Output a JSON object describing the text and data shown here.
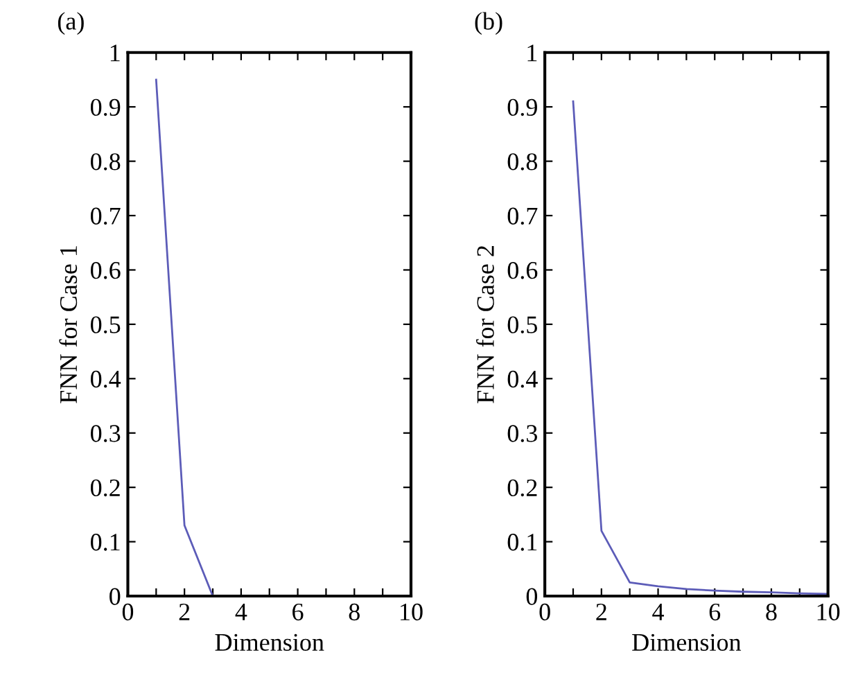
{
  "chart_data": [
    {
      "type": "line",
      "title": "(a)",
      "xlabel": "Dimension",
      "ylabel": "FNN for Case 1",
      "x": [
        1,
        2,
        3
      ],
      "series": [
        {
          "color": "#5c5cb8",
          "values": [
            0.95,
            0.13,
            0.0
          ]
        }
      ],
      "xlim": [
        0,
        10
      ],
      "ylim": [
        0,
        1
      ],
      "xticks": [
        0,
        {
          "value": 1,
          "label": null
        },
        2,
        {
          "value": 3,
          "label": null
        },
        4,
        {
          "value": 5,
          "label": null
        },
        6,
        {
          "value": 7,
          "label": null
        },
        8,
        {
          "value": 9,
          "label": null
        },
        10
      ],
      "yticks": [
        0,
        0.1,
        0.2,
        0.3,
        0.4,
        0.5,
        0.6,
        0.7,
        0.8,
        0.9,
        1
      ],
      "grid": false,
      "legend": false
    },
    {
      "type": "line",
      "title": "(b)",
      "xlabel": "Dimension",
      "ylabel": "FNN for Case 2",
      "x": [
        1,
        2,
        3,
        4,
        5,
        6,
        7,
        8,
        9,
        10
      ],
      "series": [
        {
          "color": "#5c5cb8",
          "values": [
            0.91,
            0.12,
            0.025,
            0.018,
            0.013,
            0.01,
            0.008,
            0.007,
            0.005,
            0.004
          ]
        }
      ],
      "xlim": [
        0,
        10
      ],
      "ylim": [
        0,
        1
      ],
      "xticks": [
        0,
        {
          "value": 1,
          "label": null
        },
        2,
        {
          "value": 3,
          "label": null
        },
        4,
        {
          "value": 5,
          "label": null
        },
        6,
        {
          "value": 7,
          "label": null
        },
        8,
        {
          "value": 9,
          "label": null
        },
        10
      ],
      "yticks": [
        0,
        0.1,
        0.2,
        0.3,
        0.4,
        0.5,
        0.6,
        0.7,
        0.8,
        0.9,
        1
      ],
      "grid": false,
      "legend": false
    }
  ]
}
